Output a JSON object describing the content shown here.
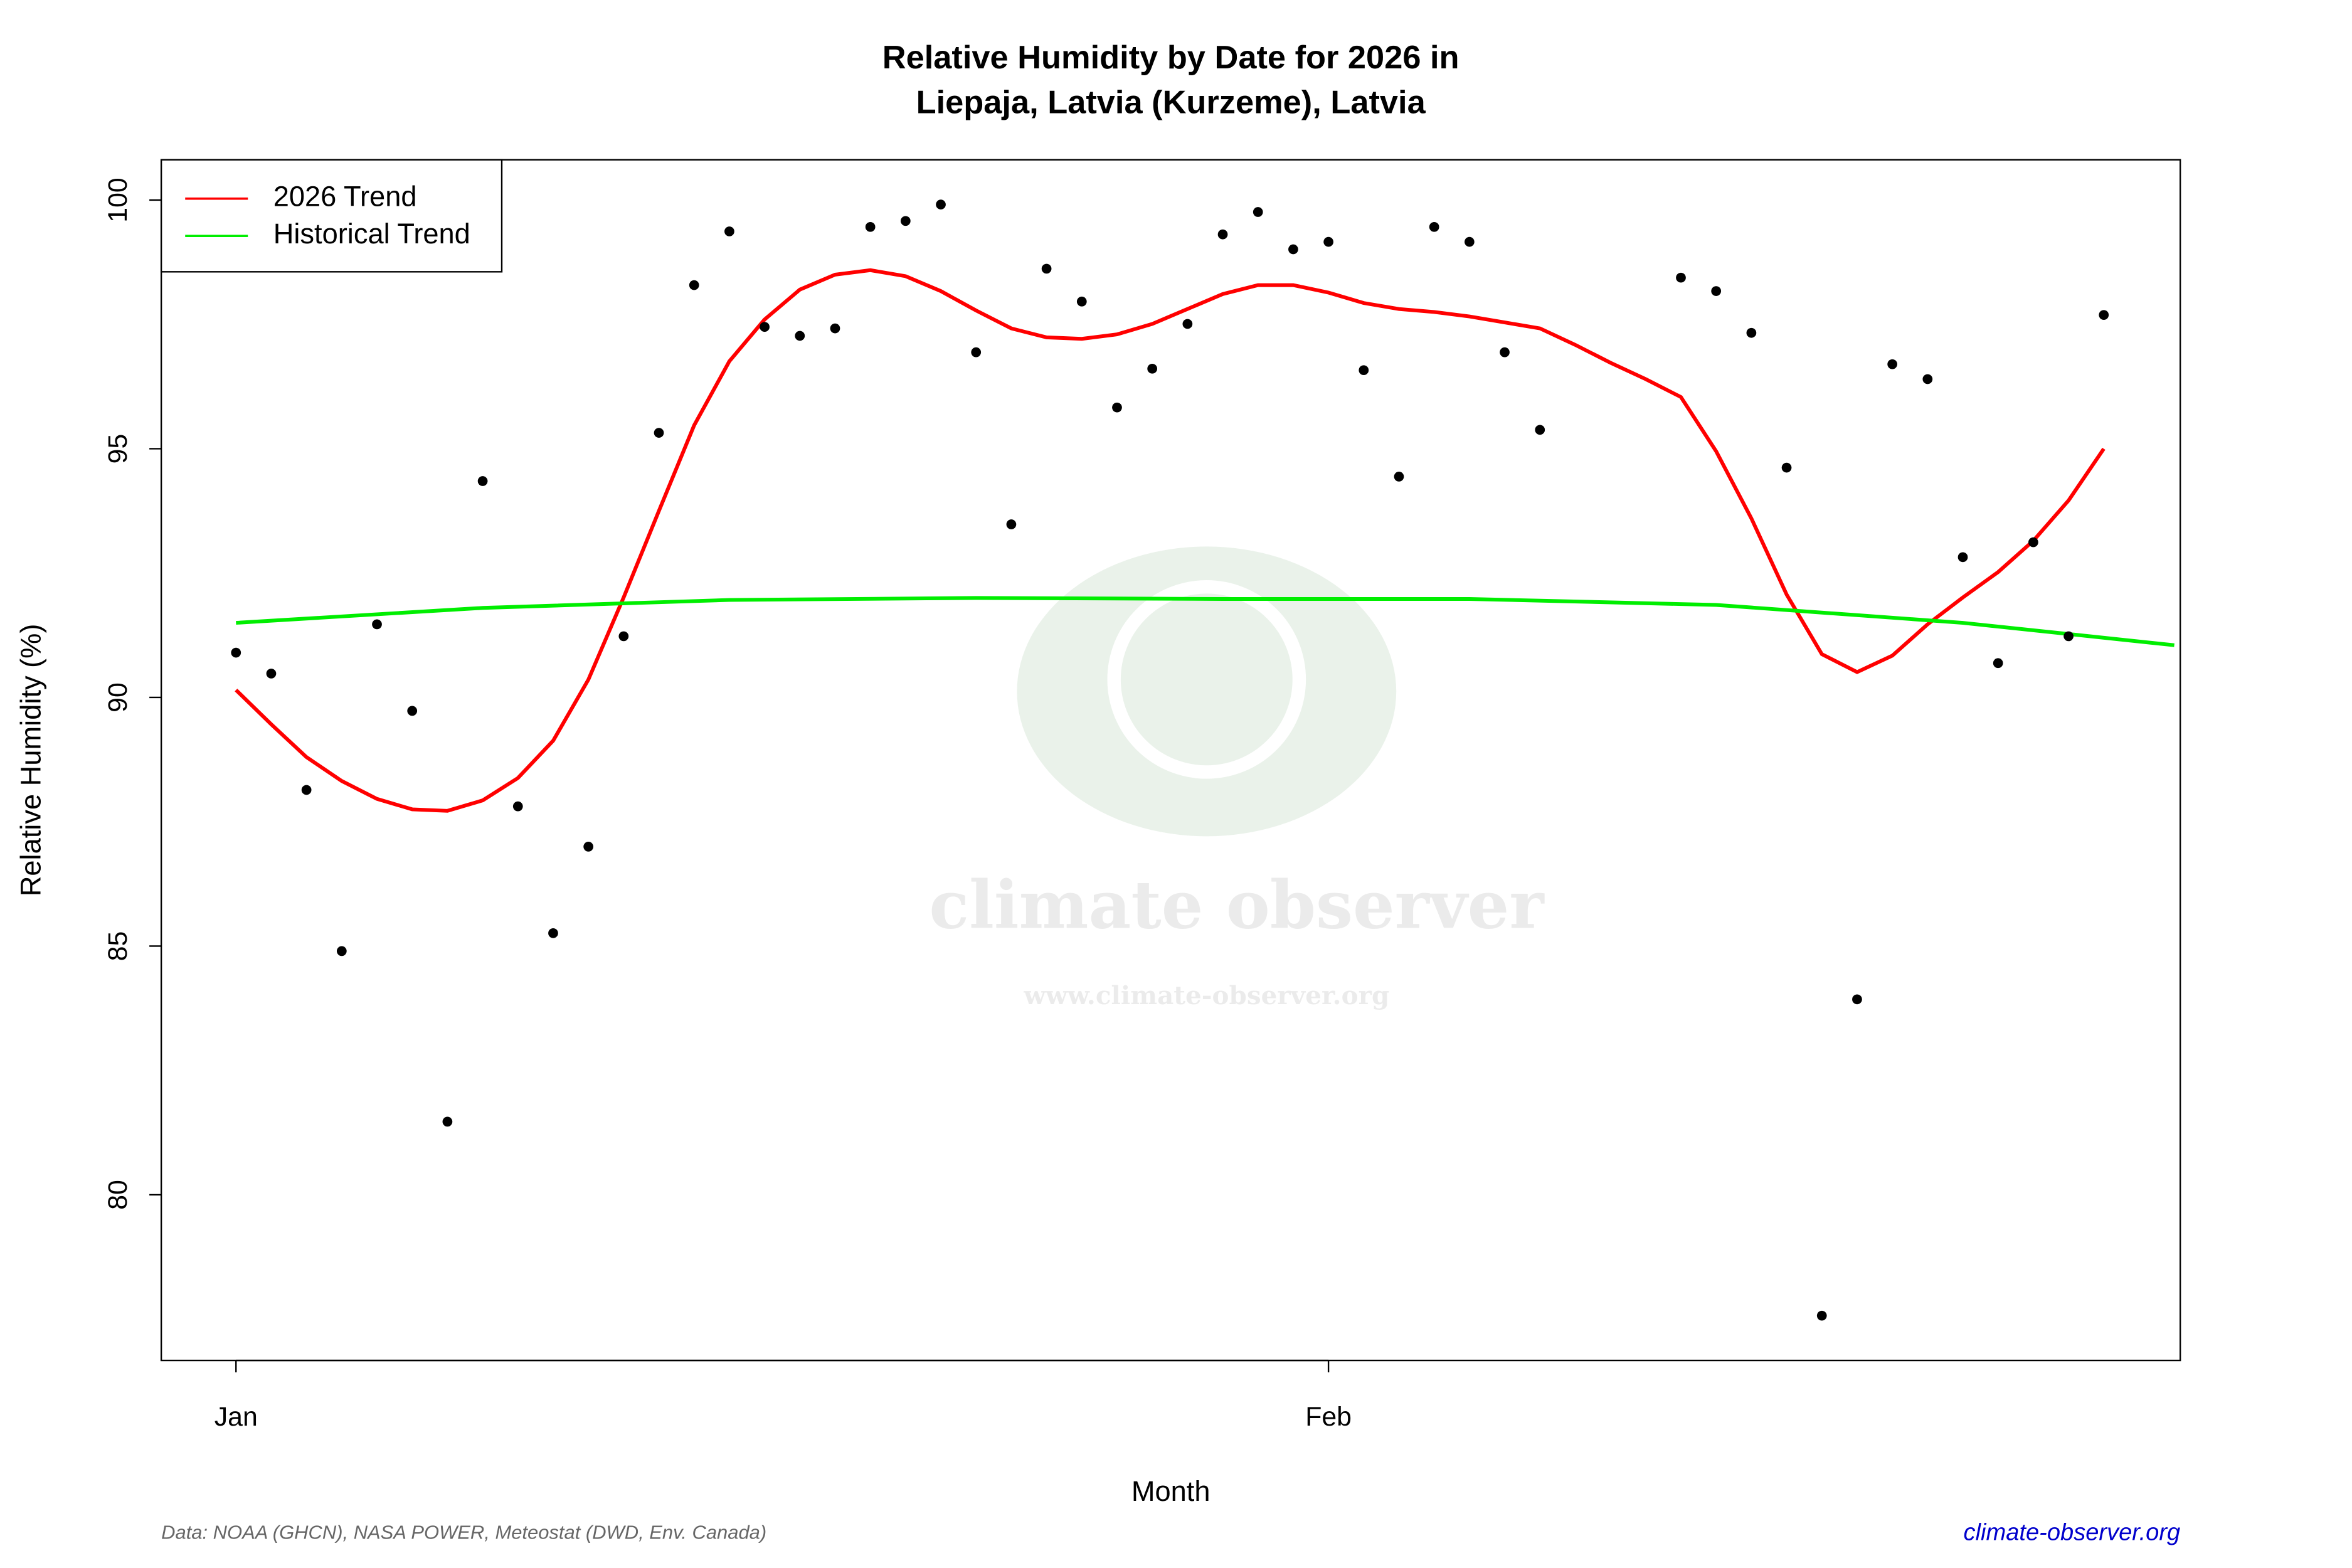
{
  "chart_data": {
    "type": "line",
    "title": "Relative Humidity by Date for 2026 in",
    "subtitle": "Liepaja, Latvia (Kurzeme), Latvia",
    "x_label": "Month",
    "y_label": "Relative Humidity (%)",
    "xlim": [
      -1.12,
      56.17
    ],
    "ylim": [
      76.67,
      100.81
    ],
    "xticks": [
      {
        "value": 1,
        "label": "Jan"
      },
      {
        "value": 32,
        "label": "Feb"
      }
    ],
    "yticks": [
      80,
      85,
      90,
      95,
      100
    ],
    "legend": "top-left",
    "points": {
      "color": "#000000",
      "x": [
        1,
        2,
        3,
        4,
        5,
        6,
        7,
        8,
        9,
        10,
        11,
        12,
        13,
        14,
        15,
        16,
        17,
        18,
        19,
        20,
        21,
        22,
        23,
        24,
        25,
        26,
        27,
        28,
        29,
        30,
        31,
        32,
        33,
        34,
        35,
        36,
        37,
        38,
        42,
        43,
        44,
        45,
        46,
        47,
        48,
        49,
        50,
        51,
        52,
        53,
        54
      ],
      "values": [
        90.9,
        90.48,
        88.14,
        84.9,
        91.47,
        89.73,
        81.47,
        94.35,
        87.81,
        85.26,
        87.0,
        91.23,
        95.32,
        98.29,
        99.37,
        97.45,
        97.27,
        97.42,
        99.46,
        99.58,
        99.91,
        96.94,
        93.48,
        98.62,
        97.96,
        95.83,
        96.61,
        97.51,
        99.31,
        99.76,
        99.01,
        99.16,
        96.58,
        94.44,
        99.46,
        99.16,
        96.94,
        95.38,
        98.44,
        98.17,
        97.33,
        94.62,
        77.57,
        83.93,
        96.7,
        96.4,
        92.82,
        90.69,
        93.12,
        91.23,
        97.69
      ]
    },
    "series": [
      {
        "name": "2026 Trend",
        "color": "#ff0000",
        "x": [
          1,
          2,
          3,
          4,
          5,
          6,
          7,
          8,
          9,
          10,
          11,
          12,
          13,
          14,
          15,
          16,
          17,
          18,
          19,
          20,
          21,
          22,
          23,
          24,
          25,
          26,
          27,
          28,
          29,
          30,
          31,
          32,
          33,
          34,
          35,
          36,
          37,
          38,
          39,
          40,
          41,
          42,
          43,
          44,
          45,
          46,
          47,
          48,
          49,
          50,
          51,
          52,
          53,
          54
        ],
        "values": [
          90.15,
          89.46,
          88.8,
          88.32,
          87.96,
          87.75,
          87.72,
          87.93,
          88.38,
          89.13,
          90.36,
          92.01,
          93.75,
          95.47,
          96.76,
          97.6,
          98.2,
          98.5,
          98.59,
          98.47,
          98.17,
          97.78,
          97.42,
          97.24,
          97.21,
          97.3,
          97.51,
          97.81,
          98.11,
          98.29,
          98.29,
          98.14,
          97.93,
          97.81,
          97.75,
          97.66,
          97.54,
          97.42,
          97.09,
          96.73,
          96.4,
          96.04,
          94.95,
          93.6,
          92.07,
          90.87,
          90.51,
          90.84,
          91.47,
          92.01,
          92.52,
          93.15,
          93.96,
          95.0
        ]
      },
      {
        "name": "Historical Trend",
        "color": "#00ee00",
        "x": [
          1,
          8,
          15,
          22,
          29,
          36,
          43,
          50,
          56
        ],
        "values": [
          91.5,
          91.8,
          91.96,
          92.0,
          91.98,
          91.98,
          91.86,
          91.5,
          91.05
        ]
      }
    ],
    "watermark": "climate observer",
    "watermark_url": "www.climate-observer.org",
    "source": "Data: NOAA (GHCN), NASA POWER, Meteostat (DWD, Env. Canada)",
    "site": "climate-observer.org"
  }
}
